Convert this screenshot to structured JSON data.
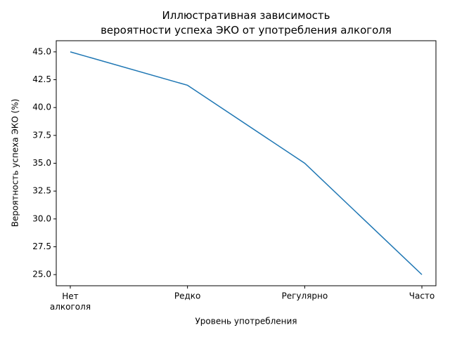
{
  "chart_data": {
    "type": "line",
    "title": "Иллюстративная зависимость\nвероятности успеха ЭКО от употребления алкоголя",
    "x_label": "Уровень употребления",
    "y_label": "Вероятность успеха ЭКО (%)",
    "categories": [
      "Нет\nалкоголя",
      "Редко",
      "Регулярно",
      "Часто"
    ],
    "values": [
      45,
      42,
      35,
      25
    ],
    "color": "#1f77b4",
    "ylim": [
      24,
      46
    ],
    "yticks": [
      {
        "value": 25,
        "label": "25.0"
      },
      27.5,
      {
        "value": 30,
        "label": "30.0"
      },
      32.5,
      {
        "value": 35,
        "label": "35.0"
      },
      37.5,
      {
        "value": 40,
        "label": "40.0"
      },
      42.5,
      {
        "value": 45,
        "label": "45.0"
      }
    ],
    "grid": false
  }
}
